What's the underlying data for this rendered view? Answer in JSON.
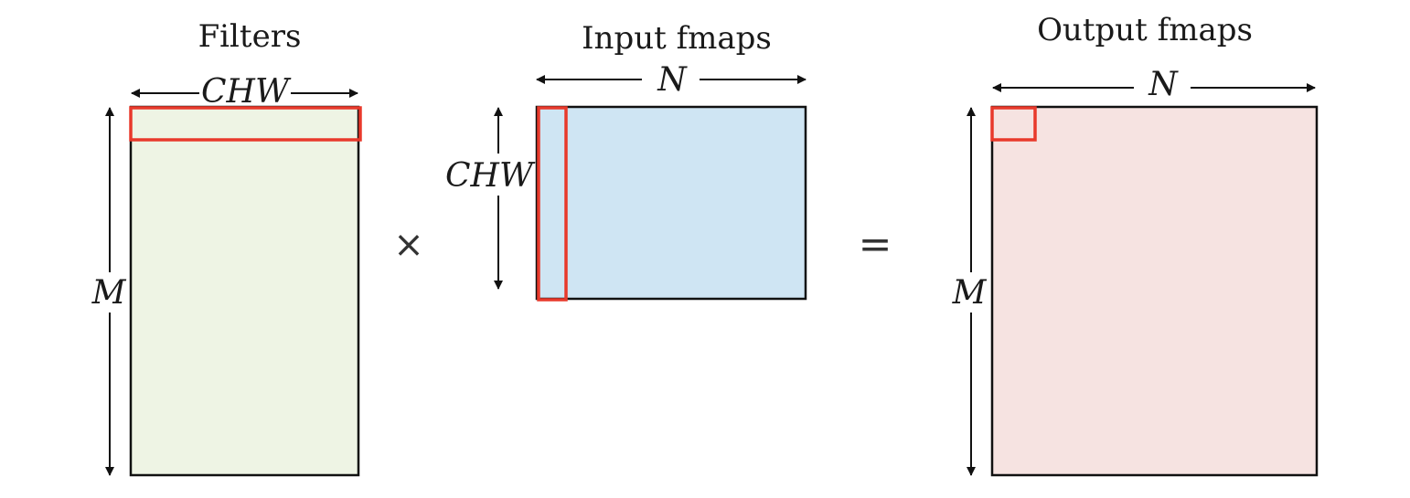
{
  "diagram": {
    "filters": {
      "title": "Filters",
      "width_label": "CHW",
      "height_label": "M"
    },
    "input": {
      "title": "Input fmaps",
      "width_label": "N",
      "height_label": "CHW"
    },
    "output": {
      "title": "Output fmaps",
      "width_label": "N",
      "height_label": "M"
    },
    "operators": {
      "multiply": "×",
      "equals": "="
    }
  },
  "colors": {
    "filters_fill": "#eef4e4",
    "input_fill": "#cfe5f3",
    "output_fill": "#f6e3e1",
    "highlight": "#e8392b"
  }
}
